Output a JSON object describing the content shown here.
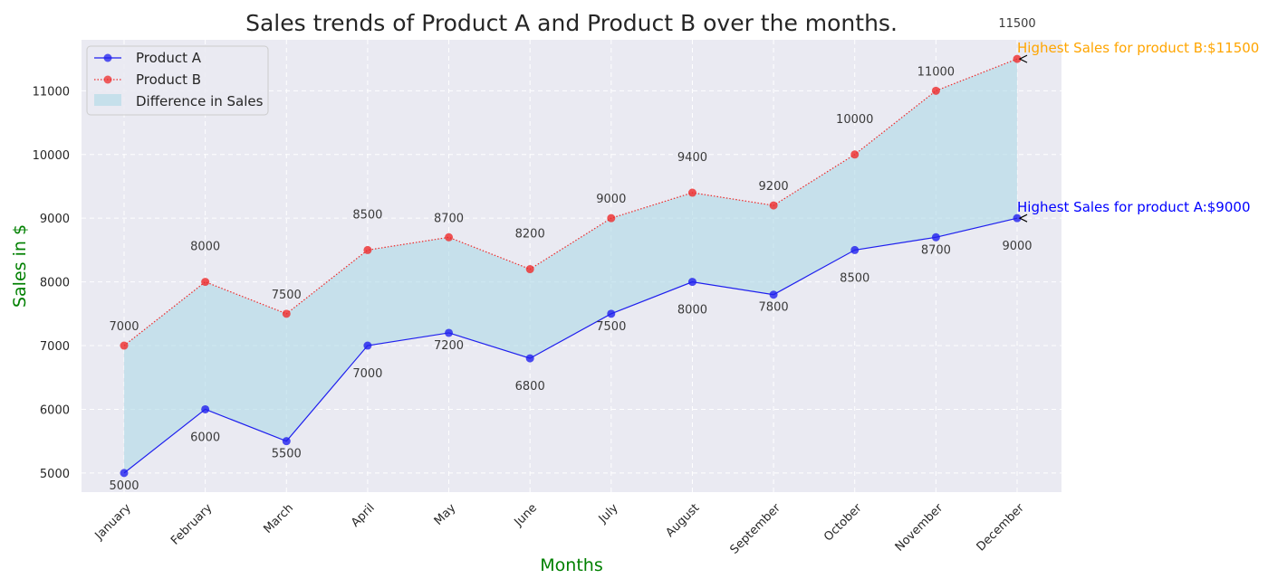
{
  "chart_data": {
    "type": "line",
    "title": "Sales trends of Product A and Product B over the months.",
    "xlabel": "Months",
    "ylabel": "Sales in $",
    "categories": [
      "January",
      "February",
      "March",
      "April",
      "May",
      "June",
      "July",
      "August",
      "September",
      "October",
      "November",
      "December"
    ],
    "series": [
      {
        "name": "Product A",
        "values": [
          5000,
          6000,
          5500,
          7000,
          7200,
          6800,
          7500,
          8000,
          7800,
          8500,
          8700,
          9000
        ],
        "color": "#1f1fee",
        "linestyle": "solid",
        "marker": "circle"
      },
      {
        "name": "Product B",
        "values": [
          7000,
          8000,
          7500,
          8500,
          8700,
          8200,
          9000,
          9400,
          9200,
          10000,
          11000,
          11500
        ],
        "color": "#ee2b2b",
        "linestyle": "dotted",
        "marker": "circle"
      }
    ],
    "fill": {
      "name": "Difference in Sales",
      "between": [
        "Product A",
        "Product B"
      ],
      "color": "#add8e6"
    },
    "ylim": [
      4700,
      11800
    ],
    "yticks": [
      5000,
      6000,
      7000,
      8000,
      9000,
      10000,
      11000
    ],
    "grid": true,
    "legend": "top-left",
    "annotations": [
      {
        "text": "Highest Sales for product B:$11500",
        "category": "December",
        "value": 11500,
        "color": "#ffa500"
      },
      {
        "text": "Highest Sales for product A:$9000",
        "category": "December",
        "value": 9000,
        "color": "#0000ff"
      }
    ],
    "colors": {
      "axis_title": "#008000",
      "plot_background": "#eaeaf2",
      "grid": "#ffffff"
    }
  }
}
